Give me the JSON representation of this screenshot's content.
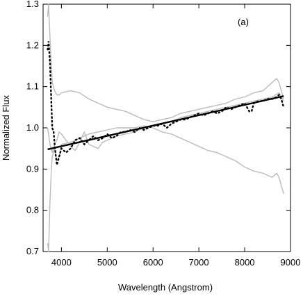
{
  "chart_data": {
    "type": "line",
    "annotation": "(a)",
    "xlabel": "Wavelength (Angstrom)",
    "ylabel": "Normalized Flux",
    "xlim": [
      3600,
      9000
    ],
    "ylim": [
      0.7,
      1.3
    ],
    "x_ticks": [
      "4000",
      "5000",
      "6000",
      "7000",
      "8000",
      "9000"
    ],
    "y_ticks": [
      "0.7",
      "0.8",
      "0.9",
      "1.0",
      "1.1",
      "1.2",
      "1.3"
    ],
    "grid": false,
    "legend": "none",
    "colors": {
      "fit": "#000000",
      "data": "#000000",
      "envelope": "#bbbbbb"
    },
    "series": [
      {
        "style": "solid-thick",
        "x": [
          3700,
          8850
        ],
        "y": [
          0.948,
          1.077
        ]
      },
      {
        "style": "dotted",
        "x": [
          3700,
          3720,
          3750,
          3780,
          3800,
          3830,
          3860,
          3900,
          3950,
          4000,
          4100,
          4200,
          4300,
          4400,
          4500,
          4600,
          4700,
          4800,
          4900,
          5000,
          5100,
          5200,
          5300,
          5400,
          5500,
          5600,
          5700,
          5800,
          5900,
          6000,
          6100,
          6200,
          6300,
          6400,
          6500,
          6600,
          6700,
          6800,
          6900,
          7000,
          7100,
          7200,
          7300,
          7400,
          7500,
          7600,
          7700,
          7800,
          7900,
          8000,
          8100,
          8150,
          8200,
          8300,
          8400,
          8500,
          8600,
          8700,
          8750,
          8800,
          8850
        ],
        "y": [
          1.19,
          1.21,
          1.16,
          1.06,
          1.0,
          0.99,
          0.95,
          0.91,
          0.93,
          0.95,
          0.94,
          0.95,
          0.97,
          0.975,
          0.96,
          0.97,
          0.98,
          0.97,
          0.975,
          0.985,
          0.975,
          0.98,
          0.99,
          0.99,
          0.995,
          0.99,
          1.0,
          0.995,
          1.0,
          1.005,
          1.005,
          1.01,
          1.0,
          1.01,
          1.015,
          1.02,
          1.02,
          1.025,
          1.03,
          1.035,
          1.03,
          1.035,
          1.04,
          1.035,
          1.04,
          1.05,
          1.045,
          1.05,
          1.055,
          1.06,
          1.04,
          1.04,
          1.06,
          1.065,
          1.065,
          1.07,
          1.07,
          1.075,
          1.08,
          1.07,
          1.05
        ]
      },
      {
        "style": "envelope",
        "x": [
          3700,
          3720,
          3750,
          3780,
          3800,
          3850,
          3900,
          3950,
          4000,
          4200,
          4400,
          4600,
          4800,
          5000,
          5200,
          5400,
          5600,
          5800,
          6000,
          6200,
          6400,
          6600,
          6800,
          7000,
          7200,
          7400,
          7600,
          7800,
          8000,
          8200,
          8400,
          8600,
          8700,
          8750,
          8800,
          8850
        ],
        "y": [
          1.27,
          1.3,
          1.22,
          1.15,
          1.11,
          1.09,
          1.08,
          1.08,
          1.085,
          1.09,
          1.085,
          1.07,
          1.06,
          1.05,
          1.045,
          1.04,
          1.03,
          1.02,
          1.015,
          1.02,
          1.025,
          1.035,
          1.04,
          1.045,
          1.05,
          1.055,
          1.06,
          1.07,
          1.075,
          1.085,
          1.09,
          1.11,
          1.12,
          1.11,
          1.09,
          1.07
        ]
      },
      {
        "style": "envelope",
        "x": [
          3700,
          3720,
          3750,
          3780,
          3800,
          3850,
          3900,
          3950,
          4000,
          4200,
          4400,
          4600,
          4800,
          5000,
          5200,
          5400,
          5600,
          5800,
          6000,
          6200,
          6400,
          6600,
          6800,
          7000,
          7200,
          7400,
          7600,
          7800,
          8000,
          8200,
          8400,
          8600,
          8700,
          8750,
          8800,
          8850
        ],
        "y": [
          0.72,
          0.7,
          0.82,
          0.9,
          0.93,
          0.95,
          0.92,
          0.93,
          0.96,
          0.965,
          0.975,
          0.985,
          0.99,
          0.995,
          1.0,
          1.0,
          1.0,
          1.005,
          1.0,
          0.99,
          0.985,
          0.975,
          0.965,
          0.955,
          0.945,
          0.94,
          0.93,
          0.92,
          0.905,
          0.895,
          0.89,
          0.88,
          0.89,
          0.88,
          0.86,
          0.84
        ]
      },
      {
        "style": "envelope",
        "x": [
          3700,
          3750,
          3800,
          3850,
          3900,
          3950,
          4000,
          4100,
          4200,
          4300,
          4400,
          4500,
          4600,
          4700,
          4800,
          4900,
          5000,
          5200,
          5400,
          5600,
          5800,
          6000,
          6200,
          6400,
          6600,
          6800,
          7000,
          7200,
          7400,
          7600,
          7800,
          8000,
          8200,
          8400,
          8600,
          8750,
          8850
        ],
        "y": [
          1.0,
          0.96,
          0.94,
          0.96,
          0.97,
          0.99,
          0.985,
          0.97,
          0.955,
          0.945,
          0.965,
          0.99,
          0.96,
          0.955,
          0.95,
          0.965,
          0.97,
          0.98,
          0.985,
          0.99,
          1.0,
          1.005,
          1.01,
          1.015,
          1.025,
          1.03,
          1.035,
          1.04,
          1.045,
          1.05,
          1.055,
          1.06,
          1.065,
          1.07,
          1.075,
          1.085,
          1.065
        ]
      }
    ]
  }
}
